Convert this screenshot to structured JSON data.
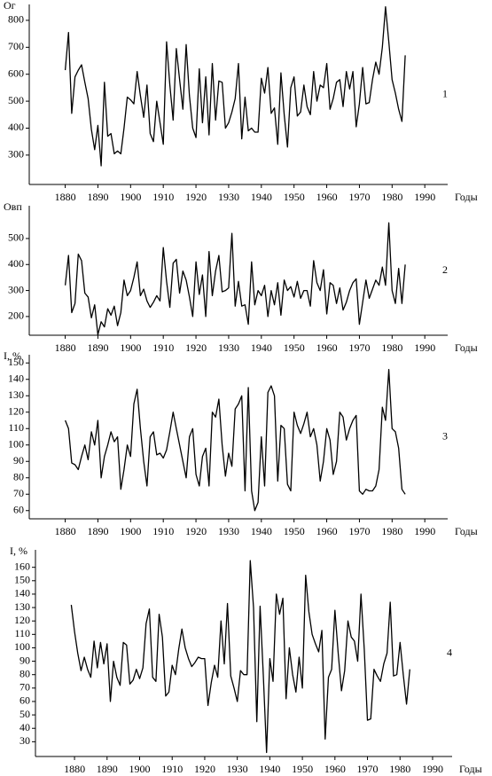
{
  "chart_data": [
    {
      "type": "line",
      "y_label": "Ог",
      "x_label": "Годы",
      "annotation": "1",
      "color": "#000000",
      "x": [
        1880,
        1881,
        1882,
        1883,
        1884,
        1885,
        1886,
        1887,
        1888,
        1889,
        1890,
        1891,
        1892,
        1893,
        1894,
        1895,
        1896,
        1897,
        1898,
        1899,
        1900,
        1901,
        1902,
        1903,
        1904,
        1905,
        1906,
        1907,
        1908,
        1909,
        1910,
        1911,
        1912,
        1913,
        1914,
        1915,
        1916,
        1917,
        1918,
        1919,
        1920,
        1921,
        1922,
        1923,
        1924,
        1925,
        1926,
        1927,
        1928,
        1929,
        1930,
        1931,
        1932,
        1933,
        1934,
        1935,
        1936,
        1937,
        1938,
        1939,
        1940,
        1941,
        1942,
        1943,
        1944,
        1945,
        1946,
        1947,
        1948,
        1949,
        1950,
        1951,
        1952,
        1953,
        1954,
        1955,
        1956,
        1957,
        1958,
        1959,
        1960,
        1961,
        1962,
        1963,
        1964,
        1965,
        1966,
        1967,
        1968,
        1969,
        1970,
        1971,
        1972,
        1973,
        1974,
        1975,
        1976,
        1977,
        1978,
        1979,
        1980,
        1981,
        1982,
        1983,
        1984
      ],
      "values": [
        615,
        755,
        455,
        590,
        615,
        635,
        570,
        510,
        395,
        320,
        410,
        260,
        570,
        370,
        380,
        305,
        315,
        305,
        400,
        515,
        505,
        490,
        610,
        520,
        440,
        560,
        380,
        350,
        500,
        420,
        340,
        720,
        560,
        430,
        695,
        580,
        470,
        710,
        520,
        400,
        365,
        620,
        420,
        590,
        375,
        640,
        430,
        575,
        570,
        400,
        420,
        460,
        510,
        640,
        360,
        515,
        390,
        400,
        385,
        385,
        585,
        530,
        625,
        455,
        475,
        340,
        605,
        450,
        330,
        550,
        590,
        445,
        460,
        560,
        480,
        450,
        610,
        500,
        560,
        550,
        640,
        470,
        510,
        570,
        580,
        480,
        610,
        545,
        610,
        405,
        490,
        625,
        490,
        495,
        580,
        645,
        600,
        700,
        850,
        720,
        580,
        530,
        470,
        425,
        670
      ],
      "xlim": [
        1869,
        1997
      ],
      "ylim": [
        191,
        859
      ],
      "xticks": [
        1880,
        1890,
        1900,
        1910,
        1920,
        1930,
        1940,
        1950,
        1960,
        1970,
        1980,
        1990
      ],
      "yticks": [
        300,
        400,
        500,
        600,
        700,
        800
      ]
    },
    {
      "type": "line",
      "y_label": "Овп",
      "x_label": "Годы",
      "annotation": "2",
      "color": "#000000",
      "x": [
        1880,
        1881,
        1882,
        1883,
        1884,
        1885,
        1886,
        1887,
        1888,
        1889,
        1890,
        1891,
        1892,
        1893,
        1894,
        1895,
        1896,
        1897,
        1898,
        1899,
        1900,
        1901,
        1902,
        1903,
        1904,
        1905,
        1906,
        1907,
        1908,
        1909,
        1910,
        1911,
        1912,
        1913,
        1914,
        1915,
        1916,
        1917,
        1918,
        1919,
        1920,
        1921,
        1922,
        1923,
        1924,
        1925,
        1926,
        1927,
        1928,
        1929,
        1930,
        1931,
        1932,
        1933,
        1934,
        1935,
        1936,
        1937,
        1938,
        1939,
        1940,
        1941,
        1942,
        1943,
        1944,
        1945,
        1946,
        1947,
        1948,
        1949,
        1950,
        1951,
        1952,
        1953,
        1954,
        1955,
        1956,
        1957,
        1958,
        1959,
        1960,
        1961,
        1962,
        1963,
        1964,
        1965,
        1966,
        1967,
        1968,
        1969,
        1970,
        1971,
        1972,
        1973,
        1974,
        1975,
        1976,
        1977,
        1978,
        1979,
        1980,
        1981,
        1982,
        1983,
        1984
      ],
      "values": [
        320,
        435,
        215,
        250,
        440,
        415,
        290,
        275,
        195,
        245,
        130,
        180,
        160,
        230,
        205,
        240,
        165,
        215,
        340,
        280,
        300,
        350,
        410,
        280,
        305,
        260,
        235,
        255,
        280,
        260,
        465,
        335,
        235,
        405,
        420,
        290,
        375,
        340,
        275,
        200,
        410,
        285,
        360,
        200,
        450,
        280,
        375,
        435,
        295,
        300,
        310,
        520,
        240,
        335,
        240,
        245,
        170,
        410,
        245,
        300,
        280,
        320,
        200,
        300,
        245,
        330,
        205,
        340,
        300,
        315,
        275,
        335,
        270,
        300,
        300,
        240,
        415,
        330,
        300,
        380,
        210,
        330,
        320,
        250,
        310,
        225,
        255,
        300,
        330,
        345,
        170,
        255,
        340,
        270,
        305,
        340,
        320,
        390,
        320,
        560,
        300,
        250,
        385,
        250,
        400
      ],
      "xlim": [
        1869,
        1997
      ],
      "ylim": [
        128,
        626
      ],
      "xticks": [
        1880,
        1890,
        1900,
        1910,
        1920,
        1930,
        1940,
        1950,
        1960,
        1970,
        1980,
        1990
      ],
      "yticks": [
        200,
        300,
        400,
        500
      ]
    },
    {
      "type": "line",
      "y_label": "I, %",
      "x_label": "Годы",
      "annotation": "3",
      "color": "#000000",
      "x": [
        1880,
        1881,
        1882,
        1883,
        1884,
        1885,
        1886,
        1887,
        1888,
        1889,
        1890,
        1891,
        1892,
        1893,
        1894,
        1895,
        1896,
        1897,
        1898,
        1899,
        1900,
        1901,
        1902,
        1903,
        1904,
        1905,
        1906,
        1907,
        1908,
        1909,
        1910,
        1911,
        1912,
        1913,
        1914,
        1915,
        1916,
        1917,
        1918,
        1919,
        1920,
        1921,
        1922,
        1923,
        1924,
        1925,
        1926,
        1927,
        1928,
        1929,
        1930,
        1931,
        1932,
        1933,
        1934,
        1935,
        1936,
        1937,
        1938,
        1939,
        1940,
        1941,
        1942,
        1943,
        1944,
        1945,
        1946,
        1947,
        1948,
        1949,
        1950,
        1951,
        1952,
        1953,
        1954,
        1955,
        1956,
        1957,
        1958,
        1959,
        1960,
        1961,
        1962,
        1963,
        1964,
        1965,
        1966,
        1967,
        1968,
        1969,
        1970,
        1971,
        1972,
        1973,
        1974,
        1975,
        1976,
        1977,
        1978,
        1979,
        1980,
        1981,
        1982,
        1983,
        1984
      ],
      "values": [
        115,
        110,
        89,
        88,
        85,
        93,
        100,
        91,
        108,
        100,
        115,
        80,
        93,
        100,
        108,
        102,
        105,
        73,
        85,
        100,
        93,
        125,
        134,
        110,
        90,
        75,
        105,
        108,
        94,
        95,
        92,
        97,
        108,
        120,
        110,
        100,
        90,
        80,
        105,
        110,
        82,
        75,
        93,
        98,
        75,
        120,
        117,
        128,
        100,
        81,
        95,
        87,
        122,
        125,
        130,
        72,
        135,
        72,
        60,
        65,
        105,
        75,
        132,
        136,
        130,
        78,
        112,
        110,
        76,
        72,
        120,
        112,
        107,
        113,
        120,
        105,
        110,
        100,
        78,
        90,
        110,
        103,
        82,
        90,
        120,
        117,
        103,
        110,
        115,
        118,
        72,
        70,
        73,
        72,
        72,
        75,
        85,
        123,
        115,
        146,
        110,
        108,
        98,
        73,
        70
      ],
      "xlim": [
        1869,
        1997
      ],
      "ylim": [
        55,
        155
      ],
      "xticks": [
        1880,
        1890,
        1900,
        1910,
        1920,
        1930,
        1940,
        1950,
        1960,
        1970,
        1980,
        1990
      ],
      "yticks": [
        60,
        70,
        80,
        90,
        100,
        110,
        120,
        130,
        140,
        150
      ]
    },
    {
      "type": "line",
      "y_label": "I, %",
      "x_label": "Годы",
      "annotation": "4",
      "color": "#000000",
      "x": [
        1879,
        1880,
        1881,
        1882,
        1883,
        1884,
        1885,
        1886,
        1887,
        1888,
        1889,
        1890,
        1891,
        1892,
        1893,
        1894,
        1895,
        1896,
        1897,
        1898,
        1899,
        1900,
        1901,
        1902,
        1903,
        1904,
        1905,
        1906,
        1907,
        1908,
        1909,
        1910,
        1911,
        1912,
        1913,
        1914,
        1915,
        1916,
        1917,
        1918,
        1919,
        1920,
        1921,
        1922,
        1923,
        1924,
        1925,
        1926,
        1927,
        1928,
        1929,
        1930,
        1931,
        1932,
        1933,
        1934,
        1935,
        1936,
        1937,
        1938,
        1939,
        1940,
        1941,
        1942,
        1943,
        1944,
        1945,
        1946,
        1947,
        1948,
        1949,
        1950,
        1951,
        1952,
        1953,
        1954,
        1955,
        1956,
        1957,
        1958,
        1959,
        1960,
        1961,
        1962,
        1963,
        1964,
        1965,
        1966,
        1967,
        1968,
        1969,
        1970,
        1971,
        1972,
        1973,
        1974,
        1975,
        1976,
        1977,
        1978,
        1979,
        1980,
        1981,
        1982,
        1983
      ],
      "values": [
        132,
        112,
        96,
        83,
        93,
        84,
        78,
        105,
        85,
        104,
        88,
        103,
        60,
        90,
        78,
        72,
        104,
        102,
        73,
        76,
        84,
        77,
        85,
        118,
        129,
        78,
        75,
        125,
        108,
        64,
        67,
        87,
        80,
        99,
        114,
        100,
        92,
        86,
        89,
        93,
        92,
        92,
        57,
        74,
        87,
        78,
        120,
        88,
        133,
        79,
        70,
        60,
        83,
        80,
        80,
        165,
        130,
        45,
        131,
        80,
        22,
        92,
        75,
        140,
        125,
        137,
        62,
        100,
        80,
        67,
        93,
        70,
        154,
        127,
        110,
        103,
        97,
        113,
        32,
        78,
        84,
        128,
        96,
        68,
        83,
        120,
        108,
        105,
        90,
        140,
        99,
        46,
        47,
        84,
        79,
        75,
        88,
        96,
        134,
        79,
        80,
        104,
        80,
        58,
        84
      ],
      "xlim": [
        1868,
        1996
      ],
      "ylim": [
        19,
        173
      ],
      "xticks": [
        1880,
        1890,
        1900,
        1910,
        1920,
        1930,
        1940,
        1950,
        1960,
        1970,
        1980,
        1990
      ],
      "yticks": [
        30,
        40,
        50,
        60,
        70,
        80,
        90,
        100,
        110,
        120,
        130,
        140,
        150,
        160
      ]
    }
  ]
}
